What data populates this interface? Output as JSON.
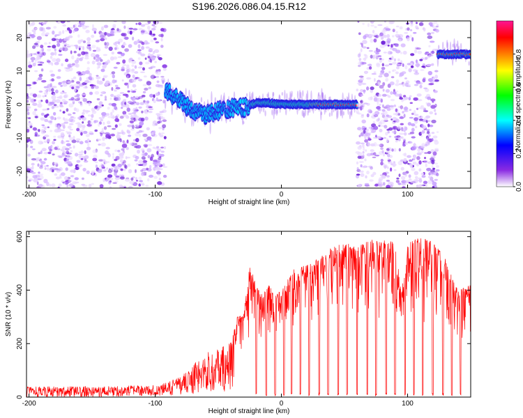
{
  "title": "S196.2026.086.04.15.R12",
  "chart_data": [
    {
      "type": "heatmap",
      "title": "S196.2026.086.04.15.R12",
      "xlabel": "Height of straight line (km)",
      "ylabel": "Frequency (Hz)",
      "xlim": [
        -202,
        150
      ],
      "ylim": [
        -25,
        25
      ],
      "xticks": [
        -200,
        -100,
        0,
        100
      ],
      "yticks": [
        20,
        10,
        0,
        -10,
        -20
      ],
      "colorbar": {
        "label": "Normalized spectral amplitude",
        "range": [
          0,
          1
        ],
        "ticks": [
          "0.0",
          "0.2",
          "0.4",
          "0.6",
          "0.8"
        ],
        "tick_values": [
          0.0,
          0.2,
          0.4,
          0.6,
          0.8
        ],
        "colors": [
          "#ffffff",
          "#8a2be2",
          "#0000ff",
          "#00ffff",
          "#00ff00",
          "#ffff00",
          "#ff7f00",
          "#ff0000",
          "#ff1493"
        ]
      },
      "regions": [
        {
          "x_range": [
            -202,
            -92
          ],
          "frequency_band": [
            -25,
            25
          ],
          "amplitude_level": "low",
          "pattern": "scattered noise"
        },
        {
          "x_range": [
            -92,
            60
          ],
          "frequency_trace": [
            [
              -90,
              4
            ],
            [
              -80,
              1
            ],
            [
              -70,
              -2
            ],
            [
              -60,
              -3
            ],
            [
              -50,
              -2
            ],
            [
              -40,
              -1
            ],
            [
              -30,
              -1
            ],
            [
              -20,
              0.5
            ],
            [
              -10,
              0.5
            ],
            [
              0,
              0
            ],
            [
              20,
              0
            ],
            [
              40,
              0
            ],
            [
              58,
              0
            ]
          ],
          "amplitude_level": "rising along trace",
          "pattern": "carrier line"
        },
        {
          "x_range": [
            60,
            124
          ],
          "frequency_band": [
            -25,
            25
          ],
          "amplitude_level": "low",
          "pattern": "scattered noise"
        },
        {
          "x_range": [
            124,
            150
          ],
          "frequency_trace": [
            [
              125,
              15
            ],
            [
              150,
              15
            ]
          ],
          "amplitude_level": "high",
          "pattern": "carrier line"
        }
      ]
    },
    {
      "type": "line",
      "xlabel": "Height of straight line (km)",
      "ylabel": "SNR (10 * v/v)",
      "xlim": [
        -202,
        150
      ],
      "ylim": [
        0,
        620
      ],
      "xticks": [
        -200,
        -100,
        0,
        100
      ],
      "yticks": [
        0,
        200,
        400,
        600
      ],
      "series": [
        {
          "name": "SNR",
          "color": "#ff0000",
          "envelope_x": [
            -202,
            -150,
            -100,
            -90,
            -80,
            -70,
            -60,
            -50,
            -40,
            -35,
            -30,
            -25,
            -20,
            -15,
            -10,
            -5,
            0,
            10,
            20,
            30,
            40,
            50,
            60,
            70,
            80,
            85,
            90,
            95,
            100,
            110,
            120,
            130,
            140,
            150
          ],
          "envelope_max": [
            40,
            40,
            45,
            55,
            80,
            120,
            170,
            180,
            210,
            300,
            310,
            500,
            420,
            380,
            420,
            380,
            400,
            480,
            500,
            520,
            560,
            580,
            560,
            590,
            580,
            600,
            570,
            400,
            580,
            600,
            580,
            520,
            400,
            420
          ],
          "envelope_min": [
            0,
            0,
            5,
            5,
            10,
            10,
            20,
            20,
            20,
            30,
            30,
            5,
            5,
            5,
            5,
            5,
            5,
            5,
            5,
            5,
            5,
            5,
            5,
            5,
            5,
            5,
            5,
            5,
            5,
            5,
            5,
            5,
            5,
            5
          ],
          "dropouts_x": [
            -20,
            -12,
            -5,
            2,
            8,
            15,
            22,
            30,
            37,
            45,
            52,
            60,
            68,
            75,
            83,
            90,
            98,
            105,
            112,
            120,
            128,
            135,
            142
          ]
        }
      ]
    }
  ]
}
